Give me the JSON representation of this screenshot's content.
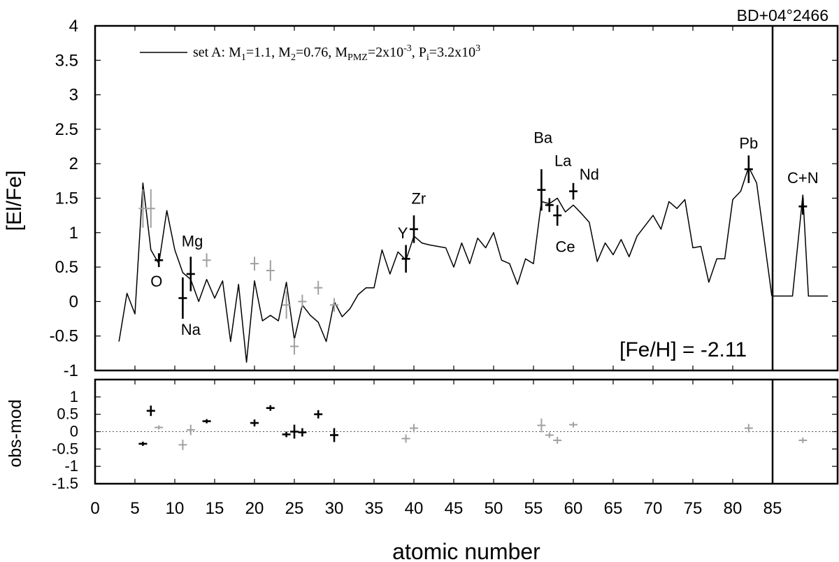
{
  "chart_data": {
    "type": "line",
    "object_label": "BD+04°2466",
    "metallicity_label": "[Fe/H] = -2.11",
    "xlabel": "atomic number",
    "x_tick_labels": [
      "0",
      "5",
      "10",
      "15",
      "20",
      "25",
      "30",
      "35",
      "40",
      "45",
      "50",
      "55",
      "60",
      "65",
      "70",
      "75",
      "80",
      "85"
    ],
    "xlim": [
      0,
      90
    ],
    "colors": {
      "observed_black": "#000000",
      "observed_gray": "#a0a0a0",
      "model_line": "#000000"
    },
    "top_panel": {
      "ylabel": "[El/Fe]",
      "ylim": [
        -1,
        4
      ],
      "y_tick_labels": [
        "4",
        "3.5",
        "3",
        "2.5",
        "2",
        "1.5",
        "1",
        "0.5",
        "0",
        "-0.5",
        "-1"
      ],
      "legend": {
        "position": "top-left",
        "line_label": "set A: M",
        "rich_text": true
      },
      "model_line": {
        "name": "set A: M1=1.1, M2=0.76, MPMZ=2x10-3, Pi=3.2x103",
        "x": [
          3,
          4,
          5,
          6,
          7,
          8,
          9,
          10,
          11,
          12,
          13,
          14,
          15,
          16,
          17,
          18,
          19,
          20,
          21,
          22,
          23,
          24,
          25,
          26,
          27,
          28,
          29,
          30,
          31,
          32,
          33,
          34,
          35,
          36,
          37,
          38,
          39,
          40,
          41,
          42,
          43,
          44,
          45,
          46,
          47,
          48,
          49,
          50,
          51,
          52,
          53,
          54,
          55,
          56,
          57,
          58,
          59,
          60,
          61,
          62,
          63,
          64,
          65,
          66,
          67,
          68,
          69,
          70,
          71,
          72,
          73,
          74,
          75,
          76,
          77,
          78,
          79,
          80,
          81,
          82,
          83,
          84.9
        ],
        "y": [
          -0.58,
          0.12,
          -0.18,
          1.72,
          0.75,
          0.55,
          1.32,
          0.75,
          0.42,
          0.32,
          0.0,
          0.32,
          0.05,
          0.3,
          -0.58,
          0.25,
          -0.88,
          0.3,
          -0.28,
          -0.2,
          -0.28,
          0.28,
          -0.55,
          -0.05,
          -0.2,
          -0.3,
          -0.58,
          0.0,
          -0.22,
          -0.1,
          0.1,
          0.2,
          0.2,
          0.75,
          0.4,
          0.72,
          0.6,
          0.95,
          0.85,
          0.82,
          0.8,
          0.78,
          0.5,
          0.85,
          0.55,
          0.92,
          0.78,
          1.0,
          0.6,
          0.55,
          0.25,
          0.62,
          0.55,
          1.45,
          1.42,
          1.5,
          1.3,
          1.4,
          1.28,
          1.15,
          0.58,
          0.85,
          0.68,
          0.9,
          0.65,
          0.95,
          1.1,
          1.25,
          1.05,
          1.45,
          1.35,
          1.48,
          0.78,
          0.8,
          0.28,
          0.62,
          0.62,
          1.48,
          1.6,
          1.95,
          1.72,
          0.08
        ]
      },
      "model_cn": {
        "x": [
          84.9,
          87.5,
          88.8,
          89.5,
          92
        ],
        "y": [
          0.08,
          0.08,
          1.55,
          0.08,
          0.08
        ]
      },
      "points": [
        {
          "x": 6,
          "y": 1.35,
          "err": 0.28,
          "color": "gray"
        },
        {
          "x": 7,
          "y": 1.35,
          "err": 0.28,
          "color": "gray"
        },
        {
          "x": 8,
          "y": 0.6,
          "err": 0.1,
          "color": "black"
        },
        {
          "x": 11,
          "y": 0.05,
          "err": 0.3,
          "color": "black"
        },
        {
          "x": 12,
          "y": 0.4,
          "err": 0.25,
          "color": "black"
        },
        {
          "x": 14,
          "y": 0.6,
          "err": 0.1,
          "color": "gray"
        },
        {
          "x": 20,
          "y": 0.55,
          "err": 0.1,
          "color": "gray"
        },
        {
          "x": 22,
          "y": 0.45,
          "err": 0.15,
          "color": "gray"
        },
        {
          "x": 24,
          "y": -0.05,
          "err": 0.2,
          "color": "gray"
        },
        {
          "x": 25,
          "y": -0.65,
          "err": 0.12,
          "color": "gray"
        },
        {
          "x": 26,
          "y": 0.0,
          "err": 0.1,
          "color": "gray"
        },
        {
          "x": 28,
          "y": 0.2,
          "err": 0.1,
          "color": "gray"
        },
        {
          "x": 30,
          "y": -0.05,
          "err": 0.1,
          "color": "gray"
        },
        {
          "x": 39,
          "y": 0.62,
          "err": 0.2,
          "color": "black"
        },
        {
          "x": 40,
          "y": 1.05,
          "err": 0.2,
          "color": "black"
        },
        {
          "x": 56,
          "y": 1.62,
          "err": 0.3,
          "color": "black"
        },
        {
          "x": 57,
          "y": 1.4,
          "err": 0.1,
          "color": "black"
        },
        {
          "x": 58,
          "y": 1.25,
          "err": 0.15,
          "color": "black"
        },
        {
          "x": 60,
          "y": 1.6,
          "err": 0.12,
          "color": "black"
        },
        {
          "x": 82,
          "y": 1.92,
          "err": 0.2,
          "color": "black"
        },
        {
          "x": 88.8,
          "y": 1.38,
          "err": 0.12,
          "color": "black"
        }
      ],
      "element_labels": [
        {
          "text": "O",
          "x": 7.7,
          "y": 0.3
        },
        {
          "text": "Mg",
          "x": 12.2,
          "y": 0.88
        },
        {
          "text": "Na",
          "x": 12.0,
          "y": -0.4
        },
        {
          "text": "Y",
          "x": 38.6,
          "y": 1.0
        },
        {
          "text": "Zr",
          "x": 40.6,
          "y": 1.5
        },
        {
          "text": "Ba",
          "x": 56.2,
          "y": 2.38
        },
        {
          "text": "La",
          "x": 58.7,
          "y": 2.05
        },
        {
          "text": "Nd",
          "x": 62.0,
          "y": 1.85
        },
        {
          "text": "Ce",
          "x": 59.0,
          "y": 0.8
        },
        {
          "text": "Pb",
          "x": 82.0,
          "y": 2.3
        },
        {
          "text": "C+N",
          "x": 88.8,
          "y": 1.8
        }
      ]
    },
    "bottom_panel": {
      "ylabel": "obs-mod",
      "ylim": [
        -1.5,
        1.5
      ],
      "y_tick_labels": [
        "1",
        "0.5",
        "0",
        "-0.5",
        "-1",
        "-1.5"
      ],
      "reference_line": 0,
      "points": [
        {
          "x": 6,
          "y": -0.35,
          "err": 0.06,
          "color": "black"
        },
        {
          "x": 7,
          "y": 0.6,
          "err": 0.15,
          "color": "black"
        },
        {
          "x": 8,
          "y": 0.12,
          "err": 0.06,
          "color": "gray"
        },
        {
          "x": 11,
          "y": -0.38,
          "err": 0.15,
          "color": "gray"
        },
        {
          "x": 12,
          "y": 0.05,
          "err": 0.15,
          "color": "gray"
        },
        {
          "x": 14,
          "y": 0.3,
          "err": 0.06,
          "color": "black"
        },
        {
          "x": 20,
          "y": 0.25,
          "err": 0.1,
          "color": "black"
        },
        {
          "x": 22,
          "y": 0.68,
          "err": 0.08,
          "color": "black"
        },
        {
          "x": 24,
          "y": -0.08,
          "err": 0.08,
          "color": "black"
        },
        {
          "x": 25,
          "y": 0.0,
          "err": 0.2,
          "color": "black"
        },
        {
          "x": 26,
          "y": -0.02,
          "err": 0.12,
          "color": "black"
        },
        {
          "x": 28,
          "y": 0.5,
          "err": 0.12,
          "color": "black"
        },
        {
          "x": 30,
          "y": -0.1,
          "err": 0.2,
          "color": "black"
        },
        {
          "x": 39,
          "y": -0.2,
          "err": 0.12,
          "color": "gray"
        },
        {
          "x": 40,
          "y": 0.1,
          "err": 0.12,
          "color": "gray"
        },
        {
          "x": 56,
          "y": 0.18,
          "err": 0.2,
          "color": "gray"
        },
        {
          "x": 57,
          "y": -0.1,
          "err": 0.08,
          "color": "gray"
        },
        {
          "x": 58,
          "y": -0.25,
          "err": 0.1,
          "color": "gray"
        },
        {
          "x": 60,
          "y": 0.2,
          "err": 0.08,
          "color": "gray"
        },
        {
          "x": 82,
          "y": 0.1,
          "err": 0.12,
          "color": "gray"
        },
        {
          "x": 88.8,
          "y": -0.25,
          "err": 0.08,
          "color": "gray"
        }
      ]
    }
  }
}
